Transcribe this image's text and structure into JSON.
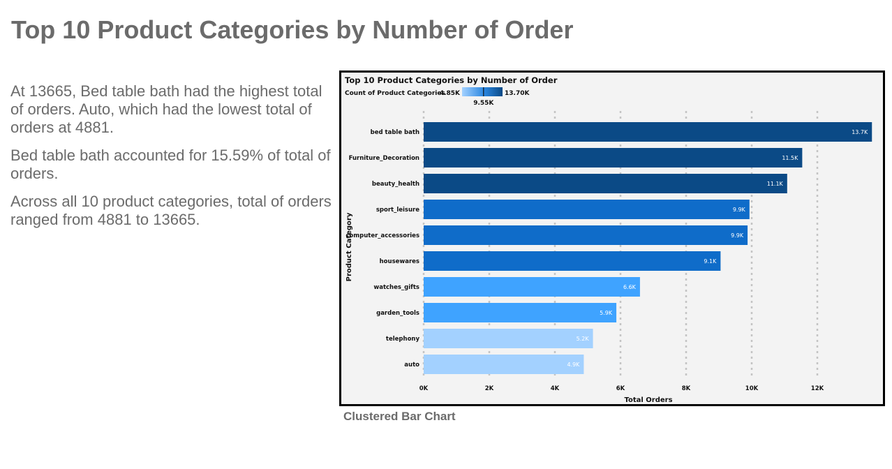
{
  "slide": {
    "title": "Top 10 Product Categories by Number of Order",
    "caption": "Clustered Bar Chart"
  },
  "narrative": [
    "At 13665, Bed table bath had the highest total of orders. Auto, which had the lowest total of orders at 4881.",
    "Bed table bath accounted for 15.59% of total of orders.",
    "Across all 10 product categories, total of orders ranged from 4881 to 13665."
  ],
  "chart_data": {
    "type": "bar",
    "orientation": "horizontal",
    "title": "Top 10 Product Categories by Number of Order",
    "xlabel": "Total Orders",
    "ylabel": "Product Category",
    "categories": [
      "bed table bath",
      "Furniture_Decoration",
      "beauty_health",
      "sport_leisure",
      "computer_accessories",
      "housewares",
      "watches_gifts",
      "garden_tools",
      "telephony",
      "auto"
    ],
    "values": [
      13665,
      11540,
      11081,
      9932,
      9874,
      9051,
      6594,
      5874,
      5161,
      4881
    ],
    "data_labels": [
      "13.7K",
      "11.5K",
      "11.1K",
      "9.9K",
      "9.9K",
      "9.1K",
      "6.6K",
      "5.9K",
      "5.2K",
      "4.9K"
    ],
    "xlim": [
      0,
      14000
    ],
    "x_ticks": [
      0,
      2000,
      4000,
      6000,
      8000,
      10000,
      12000
    ],
    "x_tick_labels": [
      "0K",
      "2K",
      "4K",
      "6K",
      "8K",
      "10K",
      "12K"
    ],
    "grid": "vertical dotted",
    "legend": {
      "title": "Count of Product Categories",
      "min_label": "4.85K",
      "mid_label": "9.55K",
      "max_label": "13.70K",
      "min": 4850,
      "mid": 9550,
      "max": 13700,
      "position": "top-left"
    },
    "colors": {
      "low": "#a3d1ff",
      "mid": "#0f6cc9",
      "high": "#0b4a86",
      "light_blue": "#3fa3ff",
      "background": "#f3f3f3",
      "grid": "#c4c4c4"
    }
  }
}
